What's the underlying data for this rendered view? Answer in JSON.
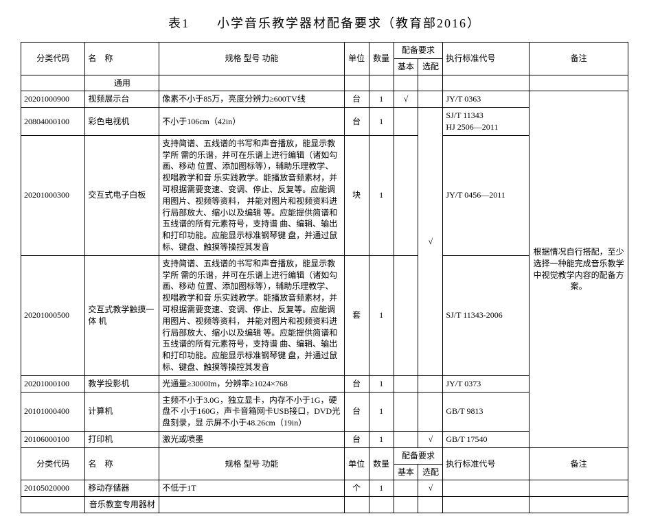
{
  "title": "表1  小学音乐教学器材配备要求（教育部2016）",
  "headers": {
    "code": "分类代码",
    "name": "名　称",
    "spec": "规格 型号 功能",
    "unit": "单位",
    "qty": "数量",
    "equip": "配备要求",
    "basic": "基本",
    "optional": "选配",
    "std": "执行标准代号",
    "remark": "备注"
  },
  "sections": {
    "general": "通用",
    "music_room": "音乐教室专用器材"
  },
  "rows": [
    {
      "code": "20201000900",
      "name": "视频展示台",
      "spec": "像素不小于85万，亮度分辨力≥600TV线",
      "unit": "台",
      "qty": "1",
      "basic": "√",
      "optional": "",
      "std": "JY/T 0363"
    },
    {
      "code": "20804000100",
      "name": "彩色电视机",
      "spec": "不小于106cm（42in）",
      "unit": "台",
      "qty": "1",
      "basic": "",
      "optional": "",
      "std": "SJ/T 11343\nHJ 2506—2011"
    },
    {
      "code": "20201000300",
      "name": "交互式电子白板",
      "spec": "支持简谱、五线谱的书写和声音播放，能显示教学所 需的乐谱，并可在乐谱上进行编辑（诸如勾画、移动 位置、添加图标等），辅助乐理教学、视唱教学和音 乐实践教学。能播放音频素材，并可根据需要变速、变调、停止、反复等。应能调用图片、视频等资料， 并能对图片和视频资料进行局部放大、缩小以及编辑 等。应能提供简谱和五线谱的所有元素符号，支持谱 曲、编辑、输出和打印功能。应能显示标准钢琴键 盘，并通过鼠标、键盘、触摸等操控其发音",
      "unit": "块",
      "qty": "1",
      "basic": "",
      "optional": "",
      "std": "JY/T 0456—2011"
    },
    {
      "code": "20201000500",
      "name": "交互式教学触摸一体 机",
      "spec": "支持简谱、五线谱的书写和声音播放，能显示教学所 需的乐谱，并可在乐谱上进行编辑（诸如勾画、移动 位置、添加图标等），辅助乐理教学、视唱教学和音 乐实践教学。能播放音频素材，并可根据需要变速、变调、停止、反复等。应能调用图片、视频等资料， 并能对图片和视频资料进行局部放大、缩小以及编辑 等。应能提供简谱和五线谱的所有元素符号，支持谱 曲、编辑、输出和打印功能。应能显示标准钢琴键 盘，并通过鼠标、键盘、触摸等操控其发音",
      "unit": "套",
      "qty": "1",
      "basic": "",
      "optional": "",
      "std": "SJ/T 11343-2006"
    },
    {
      "code": "20201000100",
      "name": "教学投影机",
      "spec": "光通量≥3000lm，分辨率≥1024×768",
      "unit": "台",
      "qty": "1",
      "basic": "",
      "optional": "",
      "std": "JY/T 0373"
    },
    {
      "code": "20101000400",
      "name": "计算机",
      "spec": "主频不小于3.0G，独立显卡，内存不小于1G，硬盘不 小于160G，声卡音箱网卡USB接口，DVD光盘刻录，显 示屏不小于48.26cm（19in）",
      "unit": "台",
      "qty": "1",
      "basic": "",
      "optional": "",
      "std": "GB/T 9813"
    },
    {
      "code": "20106000100",
      "name": "打印机",
      "spec": "激光或喷墨",
      "unit": "台",
      "qty": "1",
      "basic": "",
      "optional": "√",
      "std": "GB/T 17540"
    }
  ],
  "three_row_optional": "√",
  "remark_merged": "根据情况自行搭配，至少选择一种能完成音乐教学中视觉教学内容的配备方案。",
  "rows2": [
    {
      "code": "20105020000",
      "name": "移动存储器",
      "spec": "不低于1T",
      "unit": "个",
      "qty": "1",
      "basic": "",
      "optional": "√",
      "std": ""
    }
  ]
}
